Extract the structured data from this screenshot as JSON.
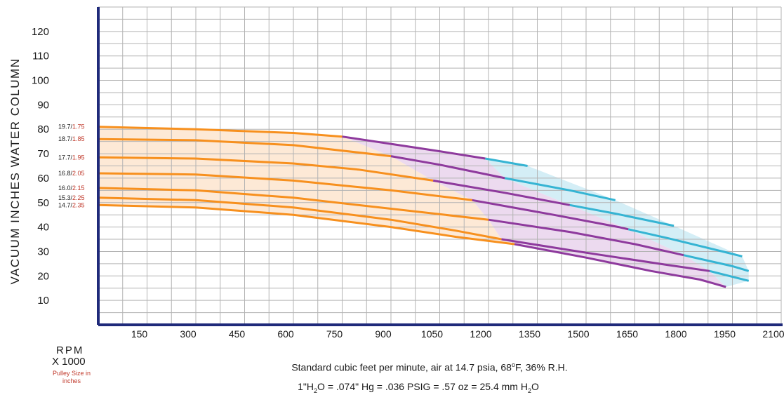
{
  "chart_data": {
    "type": "line",
    "title": "",
    "xlabel_parts": {
      "text": "Standard cubic feet per minute, air at 14.7 psia, 68",
      "sup": "o",
      "text2": "F, 36% R.H."
    },
    "ylabel": "VACUUM INCHES WATER COLUMN",
    "conversion_parts": {
      "a": "1\"H",
      "sub1": "2",
      "b": "O = .074\" Hg = .036 PSIG = .57 oz = 25.4 mm H",
      "sub2": "2",
      "c": "O"
    },
    "rpm_label_line1": "RPM",
    "rpm_label_line2": "X 1000",
    "pulley_label": "Pulley Size in inches",
    "xlim": [
      0,
      2100
    ],
    "ylim": [
      0,
      130
    ],
    "x_ticks": [
      150,
      300,
      450,
      600,
      750,
      900,
      1050,
      1200,
      1350,
      1500,
      1650,
      1800,
      1950,
      2100
    ],
    "y_ticks": [
      10,
      20,
      30,
      40,
      50,
      60,
      70,
      80,
      90,
      100,
      110,
      120
    ],
    "grid": true,
    "colors": {
      "zone_1": "#f7901e",
      "zone_2": "#8e3a9d",
      "zone_3": "#35b4d3",
      "axis": "#1f2a7a",
      "grid": "#b3b3b3",
      "pulley_text": "#c0392b",
      "fill_1": "#fde9d6",
      "fill_2": "#ecdaef",
      "fill_3": "#d4eef6"
    },
    "series": [
      {
        "rpm": "19.7",
        "pulley": "1.75",
        "points": [
          [
            0,
            81
          ],
          [
            300,
            80
          ],
          [
            600,
            78.5
          ],
          [
            750,
            77
          ],
          [
            900,
            74
          ],
          [
            1050,
            71
          ],
          [
            1190,
            68
          ],
          [
            1320,
            65
          ]
        ],
        "zone_breaks": [
          750,
          1190
        ]
      },
      {
        "rpm": "18.7",
        "pulley": "1.85",
        "points": [
          [
            0,
            76
          ],
          [
            300,
            75.5
          ],
          [
            600,
            73.5
          ],
          [
            900,
            69
          ],
          [
            1050,
            65.5
          ],
          [
            1250,
            60
          ],
          [
            1450,
            55
          ],
          [
            1590,
            51
          ]
        ],
        "zone_breaks": [
          900,
          1250
        ]
      },
      {
        "rpm": "17.7",
        "pulley": "1.95",
        "points": [
          [
            0,
            68.5
          ],
          [
            300,
            68
          ],
          [
            600,
            66
          ],
          [
            800,
            63.5
          ],
          [
            1030,
            59
          ],
          [
            1250,
            54
          ],
          [
            1450,
            49
          ],
          [
            1590,
            45.5
          ],
          [
            1770,
            40.5
          ]
        ],
        "zone_breaks": [
          1030,
          1450
        ]
      },
      {
        "rpm": "16.8",
        "pulley": "2.05",
        "points": [
          [
            0,
            62
          ],
          [
            300,
            61.5
          ],
          [
            600,
            59
          ],
          [
            900,
            55
          ],
          [
            1150,
            51
          ],
          [
            1400,
            45
          ],
          [
            1600,
            40
          ],
          [
            1750,
            35.5
          ],
          [
            1920,
            30
          ],
          [
            1980,
            28
          ]
        ],
        "zone_breaks": [
          1150,
          1630
        ]
      },
      {
        "rpm": "16.0",
        "pulley": "2.15",
        "points": [
          [
            0,
            56
          ],
          [
            300,
            55
          ],
          [
            600,
            52
          ],
          [
            900,
            47.5
          ],
          [
            1200,
            43
          ],
          [
            1450,
            38
          ],
          [
            1650,
            33
          ],
          [
            1800,
            28.5
          ],
          [
            1950,
            24
          ],
          [
            2000,
            22
          ]
        ],
        "zone_breaks": [
          1200,
          1800
        ]
      },
      {
        "rpm": "15.3",
        "pulley": "2.25",
        "points": [
          [
            0,
            52
          ],
          [
            300,
            51
          ],
          [
            600,
            48
          ],
          [
            900,
            43
          ],
          [
            1100,
            38.5
          ],
          [
            1240,
            35
          ],
          [
            1500,
            29.5
          ],
          [
            1750,
            24.5
          ],
          [
            1880,
            22
          ],
          [
            2000,
            18
          ]
        ],
        "zone_breaks": [
          1240,
          1880
        ]
      },
      {
        "rpm": "14.7",
        "pulley": "2.35",
        "points": [
          [
            0,
            49
          ],
          [
            300,
            48
          ],
          [
            600,
            45
          ],
          [
            900,
            40
          ],
          [
            1100,
            36
          ],
          [
            1280,
            33
          ],
          [
            1500,
            27.5
          ],
          [
            1700,
            22
          ],
          [
            1850,
            18.5
          ],
          [
            1930,
            15.5
          ]
        ],
        "zone_breaks": [
          1280,
          1930
        ]
      }
    ]
  }
}
